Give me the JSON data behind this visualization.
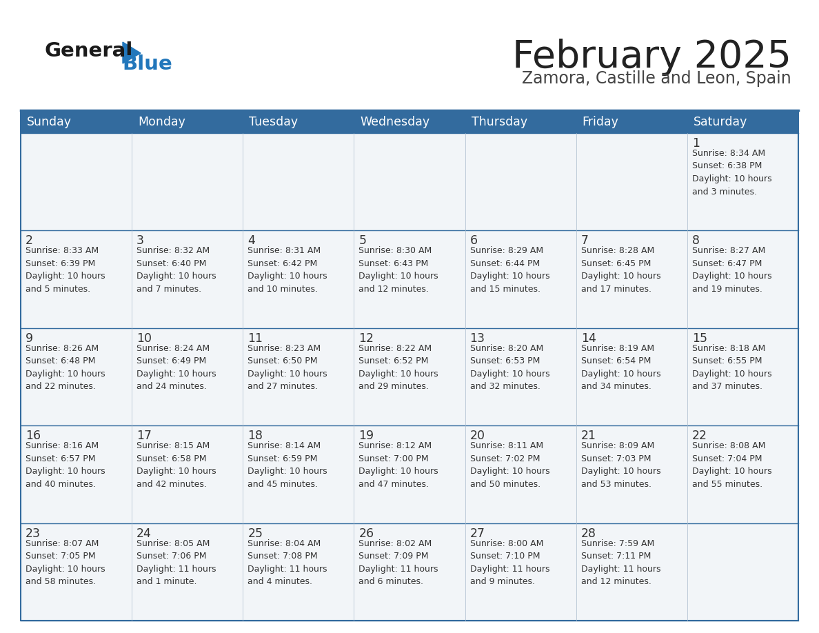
{
  "title": "February 2025",
  "subtitle": "Zamora, Castille and Leon, Spain",
  "title_color": "#222222",
  "subtitle_color": "#444444",
  "header_bg_color": "#336b9e",
  "header_text_color": "#ffffff",
  "cell_bg_color": "#f2f5f8",
  "border_color": "#336b9e",
  "day_number_color": "#333333",
  "cell_text_color": "#333333",
  "logo_general_color": "#1a1a1a",
  "logo_blue_color": "#2277bb",
  "days_of_week": [
    "Sunday",
    "Monday",
    "Tuesday",
    "Wednesday",
    "Thursday",
    "Friday",
    "Saturday"
  ],
  "weeks": [
    [
      {
        "day": null,
        "info": null
      },
      {
        "day": null,
        "info": null
      },
      {
        "day": null,
        "info": null
      },
      {
        "day": null,
        "info": null
      },
      {
        "day": null,
        "info": null
      },
      {
        "day": null,
        "info": null
      },
      {
        "day": 1,
        "info": "Sunrise: 8:34 AM\nSunset: 6:38 PM\nDaylight: 10 hours\nand 3 minutes."
      }
    ],
    [
      {
        "day": 2,
        "info": "Sunrise: 8:33 AM\nSunset: 6:39 PM\nDaylight: 10 hours\nand 5 minutes."
      },
      {
        "day": 3,
        "info": "Sunrise: 8:32 AM\nSunset: 6:40 PM\nDaylight: 10 hours\nand 7 minutes."
      },
      {
        "day": 4,
        "info": "Sunrise: 8:31 AM\nSunset: 6:42 PM\nDaylight: 10 hours\nand 10 minutes."
      },
      {
        "day": 5,
        "info": "Sunrise: 8:30 AM\nSunset: 6:43 PM\nDaylight: 10 hours\nand 12 minutes."
      },
      {
        "day": 6,
        "info": "Sunrise: 8:29 AM\nSunset: 6:44 PM\nDaylight: 10 hours\nand 15 minutes."
      },
      {
        "day": 7,
        "info": "Sunrise: 8:28 AM\nSunset: 6:45 PM\nDaylight: 10 hours\nand 17 minutes."
      },
      {
        "day": 8,
        "info": "Sunrise: 8:27 AM\nSunset: 6:47 PM\nDaylight: 10 hours\nand 19 minutes."
      }
    ],
    [
      {
        "day": 9,
        "info": "Sunrise: 8:26 AM\nSunset: 6:48 PM\nDaylight: 10 hours\nand 22 minutes."
      },
      {
        "day": 10,
        "info": "Sunrise: 8:24 AM\nSunset: 6:49 PM\nDaylight: 10 hours\nand 24 minutes."
      },
      {
        "day": 11,
        "info": "Sunrise: 8:23 AM\nSunset: 6:50 PM\nDaylight: 10 hours\nand 27 minutes."
      },
      {
        "day": 12,
        "info": "Sunrise: 8:22 AM\nSunset: 6:52 PM\nDaylight: 10 hours\nand 29 minutes."
      },
      {
        "day": 13,
        "info": "Sunrise: 8:20 AM\nSunset: 6:53 PM\nDaylight: 10 hours\nand 32 minutes."
      },
      {
        "day": 14,
        "info": "Sunrise: 8:19 AM\nSunset: 6:54 PM\nDaylight: 10 hours\nand 34 minutes."
      },
      {
        "day": 15,
        "info": "Sunrise: 8:18 AM\nSunset: 6:55 PM\nDaylight: 10 hours\nand 37 minutes."
      }
    ],
    [
      {
        "day": 16,
        "info": "Sunrise: 8:16 AM\nSunset: 6:57 PM\nDaylight: 10 hours\nand 40 minutes."
      },
      {
        "day": 17,
        "info": "Sunrise: 8:15 AM\nSunset: 6:58 PM\nDaylight: 10 hours\nand 42 minutes."
      },
      {
        "day": 18,
        "info": "Sunrise: 8:14 AM\nSunset: 6:59 PM\nDaylight: 10 hours\nand 45 minutes."
      },
      {
        "day": 19,
        "info": "Sunrise: 8:12 AM\nSunset: 7:00 PM\nDaylight: 10 hours\nand 47 minutes."
      },
      {
        "day": 20,
        "info": "Sunrise: 8:11 AM\nSunset: 7:02 PM\nDaylight: 10 hours\nand 50 minutes."
      },
      {
        "day": 21,
        "info": "Sunrise: 8:09 AM\nSunset: 7:03 PM\nDaylight: 10 hours\nand 53 minutes."
      },
      {
        "day": 22,
        "info": "Sunrise: 8:08 AM\nSunset: 7:04 PM\nDaylight: 10 hours\nand 55 minutes."
      }
    ],
    [
      {
        "day": 23,
        "info": "Sunrise: 8:07 AM\nSunset: 7:05 PM\nDaylight: 10 hours\nand 58 minutes."
      },
      {
        "day": 24,
        "info": "Sunrise: 8:05 AM\nSunset: 7:06 PM\nDaylight: 11 hours\nand 1 minute."
      },
      {
        "day": 25,
        "info": "Sunrise: 8:04 AM\nSunset: 7:08 PM\nDaylight: 11 hours\nand 4 minutes."
      },
      {
        "day": 26,
        "info": "Sunrise: 8:02 AM\nSunset: 7:09 PM\nDaylight: 11 hours\nand 6 minutes."
      },
      {
        "day": 27,
        "info": "Sunrise: 8:00 AM\nSunset: 7:10 PM\nDaylight: 11 hours\nand 9 minutes."
      },
      {
        "day": 28,
        "info": "Sunrise: 7:59 AM\nSunset: 7:11 PM\nDaylight: 11 hours\nand 12 minutes."
      },
      {
        "day": null,
        "info": null
      }
    ]
  ]
}
